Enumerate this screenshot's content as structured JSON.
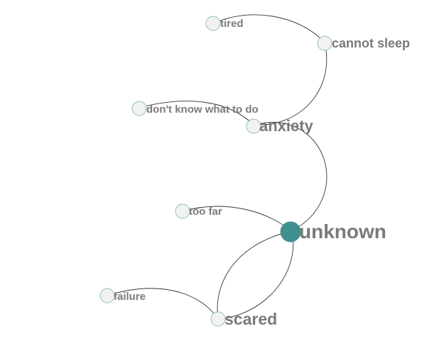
{
  "graph": {
    "nodes": [
      {
        "id": "tired",
        "label": "tired",
        "size": "small"
      },
      {
        "id": "cannot-sleep",
        "label": "cannot sleep",
        "size": "medium"
      },
      {
        "id": "dont-know",
        "label": "don't know what to do",
        "size": "small"
      },
      {
        "id": "anxiety",
        "label": "anxiety",
        "size": "large"
      },
      {
        "id": "unknown",
        "label": "unknown",
        "size": "focus"
      },
      {
        "id": "too-far",
        "label": "too far",
        "size": "small"
      },
      {
        "id": "failure",
        "label": "failure",
        "size": "small"
      },
      {
        "id": "scared",
        "label": "scared",
        "size": "large"
      }
    ],
    "edges": [
      {
        "from": "tired",
        "to": "cannot-sleep"
      },
      {
        "from": "cannot-sleep",
        "to": "anxiety"
      },
      {
        "from": "dont-know",
        "to": "anxiety"
      },
      {
        "from": "anxiety",
        "to": "unknown"
      },
      {
        "from": "too-far",
        "to": "unknown"
      },
      {
        "from": "scared",
        "to": "unknown"
      },
      {
        "from": "unknown",
        "to": "scared"
      },
      {
        "from": "failure",
        "to": "scared"
      }
    ],
    "colors": {
      "focus_node": "#3f8f8c",
      "node_fill": "#f2f2f2",
      "node_stroke": "#8fbfb5",
      "label": "#7a7a7a",
      "edge": "#333333"
    }
  }
}
